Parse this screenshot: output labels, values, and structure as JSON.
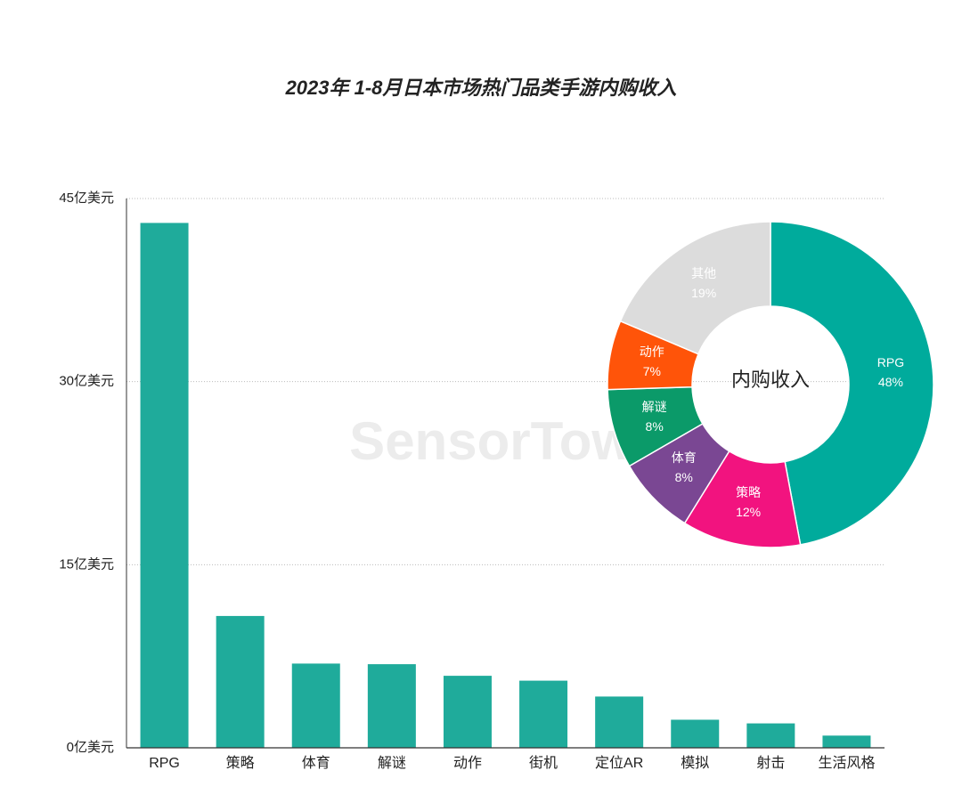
{
  "chart_data": [
    {
      "type": "bar",
      "title": "2023年 1-8月日本市场热门品类手游内购收入",
      "watermark": "SensorTower",
      "categories": [
        "RPG",
        "策略",
        "体育",
        "解谜",
        "动作",
        "街机",
        "定位AR",
        "模拟",
        "射击",
        "生活风格"
      ],
      "values": [
        43.0,
        10.8,
        6.9,
        6.85,
        5.9,
        5.5,
        4.2,
        2.3,
        2.0,
        1.0
      ],
      "color": "#1fab9b",
      "ylim": [
        0,
        45
      ],
      "yticks": [
        {
          "value": 0,
          "label": "0亿美元"
        },
        {
          "value": 15,
          "label": "15亿美元"
        },
        {
          "value": 30,
          "label": "30亿美元"
        },
        {
          "value": 45,
          "label": "45亿美元"
        }
      ],
      "grid": true
    },
    {
      "type": "donut",
      "center_label": "内购收入",
      "categories": [
        "RPG",
        "策略",
        "体育",
        "解谜",
        "动作",
        "其他"
      ],
      "values": [
        48,
        12,
        8,
        8,
        7,
        19
      ],
      "value_labels": [
        "48%",
        "12%",
        "8%",
        "8%",
        "7%",
        "19%"
      ],
      "colors": [
        "#00ab9c",
        "#f2137f",
        "#7a4793",
        "#0b9a69",
        "#ff5409",
        "#dcdcdc"
      ]
    }
  ]
}
